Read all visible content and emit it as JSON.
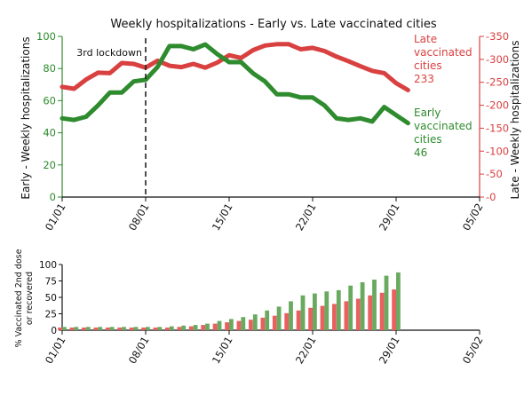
{
  "chart_data": [
    {
      "type": "line",
      "title": "Weekly hospitalizations - Early vs. Late vaccinated cities",
      "xlabel": "",
      "x_tick_labels": [
        "01/01",
        "08/01",
        "15/01",
        "22/01",
        "29/01",
        "05/02"
      ],
      "x_range_days": [
        1,
        36
      ],
      "left_ylabel": "Early - Weekly hospitalizations",
      "right_ylabel": "Late - Weekly hospitalizations",
      "left_ylim": [
        0,
        100
      ],
      "left_ticks": [
        0,
        20,
        40,
        60,
        80,
        100
      ],
      "right_ylim": [
        0,
        350
      ],
      "right_ticks": [
        0,
        50,
        100,
        150,
        200,
        250,
        300,
        350
      ],
      "annotation": {
        "label": "3rd lockdown",
        "x_day": 8
      },
      "colors": {
        "early": "#2e8b2e",
        "late": "#d94040"
      },
      "series": [
        {
          "name": "Late vaccinated cities",
          "axis": "right",
          "label_lines": [
            "Late",
            "vaccinated",
            "cities",
            "233"
          ],
          "x": [
            1,
            2,
            3,
            4,
            5,
            6,
            7,
            8,
            9,
            10,
            11,
            12,
            13,
            14,
            15,
            16,
            17,
            18,
            19,
            20,
            21,
            22,
            23,
            24,
            25,
            26,
            27,
            28,
            29,
            30
          ],
          "values": [
            240,
            236,
            256,
            271,
            270,
            292,
            290,
            282,
            297,
            286,
            283,
            290,
            282,
            293,
            309,
            303,
            320,
            330,
            333,
            333,
            322,
            325,
            318,
            306,
            296,
            285,
            275,
            270,
            248,
            233
          ]
        },
        {
          "name": "Early vaccinated cities",
          "axis": "left",
          "label_lines": [
            "Early",
            "vaccinated",
            "cities",
            "46"
          ],
          "x": [
            1,
            2,
            3,
            4,
            5,
            6,
            7,
            8,
            9,
            10,
            11,
            12,
            13,
            14,
            15,
            16,
            17,
            18,
            19,
            20,
            21,
            22,
            23,
            24,
            25,
            26,
            27,
            28,
            29,
            30
          ],
          "values": [
            49,
            48,
            50,
            57,
            65,
            65,
            72,
            73,
            81,
            94,
            94,
            92,
            95,
            89,
            84,
            84,
            77,
            72,
            64,
            64,
            62,
            62,
            57,
            49,
            48,
            49,
            47,
            56,
            51,
            46
          ]
        }
      ]
    },
    {
      "type": "bar",
      "ylabel_lines": [
        "% Vaccinated 2nd dose",
        "or recovered"
      ],
      "ylim": [
        0,
        100
      ],
      "y_ticks": [
        0,
        25,
        50,
        75,
        100
      ],
      "x_tick_labels": [
        "01/01",
        "08/01",
        "15/01",
        "22/01",
        "29/01",
        "05/02"
      ],
      "colors": {
        "early": "#6aaa60",
        "late": "#e86060"
      },
      "x": [
        1,
        2,
        3,
        4,
        5,
        6,
        7,
        8,
        9,
        10,
        11,
        12,
        13,
        14,
        15,
        16,
        17,
        18,
        19,
        20,
        21,
        22,
        23,
        24,
        25,
        26,
        27,
        28,
        29
      ],
      "series": [
        {
          "name": "",
          "key": "late",
          "values": [
            4,
            4,
            4,
            4,
            4,
            4,
            4,
            4,
            4,
            4,
            5,
            6,
            8,
            10,
            12,
            14,
            16,
            19,
            22,
            26,
            30,
            34,
            37,
            40,
            44,
            48,
            53,
            57,
            62
          ]
        },
        {
          "name": "",
          "key": "early",
          "values": [
            5,
            5,
            5,
            5,
            5,
            5,
            5,
            5,
            5,
            6,
            7,
            8,
            10,
            14,
            17,
            20,
            24,
            30,
            36,
            44,
            53,
            56,
            59,
            61,
            68,
            73,
            77,
            83,
            88
          ]
        }
      ]
    }
  ]
}
